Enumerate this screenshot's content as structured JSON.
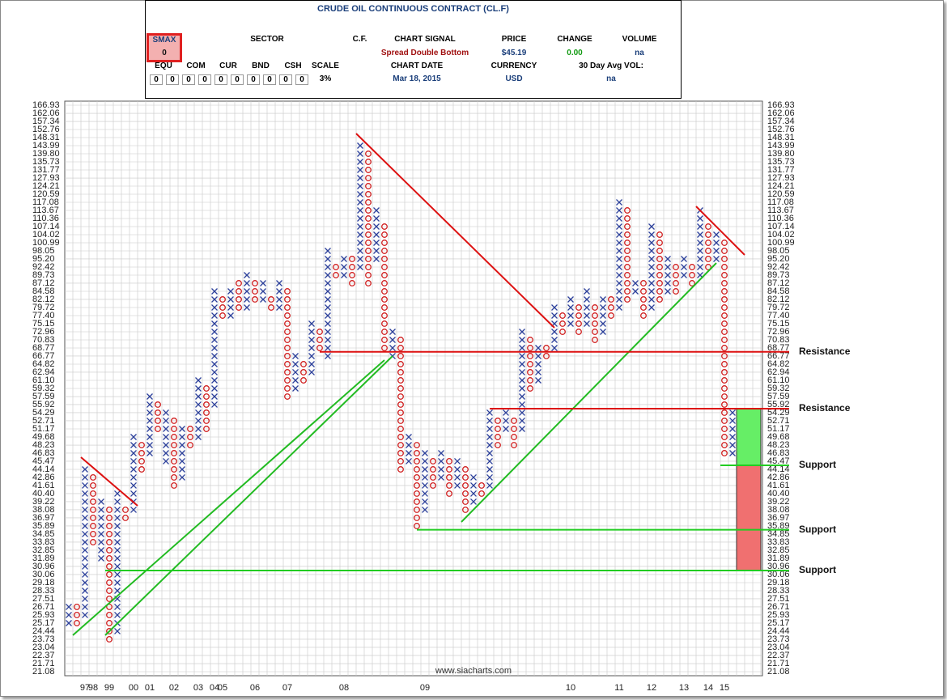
{
  "header": {
    "title": "CRUDE OIL CONTINUOUS CONTRACT (CL.F)",
    "smax_label": "SMAX",
    "smax_value": "0",
    "sector": "SECTOR",
    "cf": "C.F.",
    "signal_label": "CHART SIGNAL",
    "signal": "Spread Double Bottom",
    "price_label": "PRICE",
    "price": "$45.19",
    "change_label": "CHANGE",
    "change": "0.00",
    "volume_label": "VOLUME",
    "volume": "na",
    "assets": [
      "EQU",
      "COM",
      "CUR",
      "BND",
      "CSH"
    ],
    "asset_values": [
      "0",
      "0",
      "0",
      "0",
      "0",
      "0",
      "0",
      "0",
      "0",
      "0"
    ],
    "scale_label": "SCALE",
    "scale": "3%",
    "date_label": "CHART DATE",
    "date": "Mar 18, 2015",
    "currency_label": "CURRENCY",
    "currency": "USD",
    "avgvol_label": "30 Day Avg VOL:",
    "avgvol": "na"
  },
  "chart_data": {
    "type": "point-and-figure",
    "log": true,
    "grid": true,
    "colors": {
      "X": "#2b3f9a",
      "O": "#d02020"
    },
    "ylim": [
      21.08,
      166.93
    ],
    "yticks": [
      166.93,
      162.06,
      157.34,
      152.76,
      148.31,
      143.99,
      {
        "value": 139.8,
        "label": "139.80"
      },
      135.73,
      131.77,
      127.93,
      124.21,
      120.59,
      117.08,
      113.67,
      110.36,
      107.14,
      104.02,
      100.99,
      98.05,
      {
        "value": 95.2,
        "label": "95.20"
      },
      92.42,
      89.73,
      87.12,
      84.58,
      82.12,
      79.72,
      {
        "value": 77.4,
        "label": "77.40"
      },
      75.15,
      72.96,
      70.83,
      68.77,
      66.77,
      64.82,
      62.94,
      {
        "value": 61.1,
        "label": "61.10"
      },
      59.32,
      57.59,
      55.92,
      54.29,
      52.71,
      51.17,
      49.68,
      48.23,
      46.83,
      45.47,
      44.14,
      42.86,
      41.61,
      {
        "value": 40.4,
        "label": "40.40"
      },
      39.22,
      38.08,
      36.97,
      35.89,
      34.85,
      33.83,
      32.85,
      31.89,
      30.96,
      30.06,
      29.18,
      28.33,
      27.51,
      26.71,
      25.93,
      25.17,
      24.44,
      23.73,
      23.04,
      22.37,
      21.71,
      21.08
    ],
    "categories": [
      null,
      null,
      "97",
      "98",
      null,
      "99",
      null,
      null,
      "00",
      null,
      "01",
      null,
      null,
      "02",
      null,
      null,
      "03",
      null,
      "04",
      "05",
      null,
      null,
      null,
      "06",
      null,
      null,
      null,
      "07",
      null,
      null,
      null,
      null,
      null,
      null,
      "08",
      null,
      null,
      null,
      null,
      null,
      null,
      null,
      null,
      null,
      "09",
      null,
      null,
      null,
      null,
      null,
      null,
      null,
      null,
      null,
      null,
      null,
      null,
      null,
      null,
      null,
      null,
      null,
      "10",
      null,
      null,
      null,
      null,
      null,
      "11",
      null,
      null,
      null,
      "12",
      null,
      null,
      null,
      "13",
      null,
      null,
      "14",
      null,
      "15",
      null,
      null
    ],
    "columns": [
      {
        "type": "X",
        "low": 25.17,
        "high": 26.71
      },
      {
        "type": "O",
        "low": 25.17,
        "high": 26.71
      },
      {
        "type": "X",
        "low": 25.93,
        "high": 44.14
      },
      {
        "type": "O",
        "low": 33.83,
        "high": 42.86
      },
      {
        "type": "X",
        "low": 31.89,
        "high": 39.22
      },
      {
        "type": "O",
        "low": 23.73,
        "high": 38.08
      },
      {
        "type": "X",
        "low": 24.44,
        "high": 40.4
      },
      {
        "type": "O",
        "low": 36.97,
        "high": 38.08
      },
      {
        "type": "X",
        "low": 38.08,
        "high": 49.68
      },
      {
        "type": "O",
        "low": 44.14,
        "high": 48.23
      },
      {
        "type": "X",
        "low": 46.83,
        "high": 57.59
      },
      {
        "type": "O",
        "low": 51.17,
        "high": 55.92
      },
      {
        "type": "X",
        "low": 45.47,
        "high": 54.29
      },
      {
        "type": "O",
        "low": 41.61,
        "high": 52.71
      },
      {
        "type": "X",
        "low": 42.86,
        "high": 51.17
      },
      {
        "type": "O",
        "low": 48.23,
        "high": 51.17
      },
      {
        "type": "X",
        "low": 49.68,
        "high": 61.1
      },
      {
        "type": "O",
        "low": 51.17,
        "high": 59.32
      },
      {
        "type": "X",
        "low": 55.92,
        "high": 84.58
      },
      {
        "type": "O",
        "low": 77.4,
        "high": 82.12
      },
      {
        "type": "X",
        "low": 77.4,
        "high": 84.58
      },
      {
        "type": "O",
        "low": 79.72,
        "high": 87.12
      },
      {
        "type": "X",
        "low": 79.72,
        "high": 89.73
      },
      {
        "type": "O",
        "low": 82.12,
        "high": 87.12
      },
      {
        "type": "X",
        "low": 82.12,
        "high": 87.12
      },
      {
        "type": "O",
        "low": 79.72,
        "high": 82.12
      },
      {
        "type": "X",
        "low": 79.72,
        "high": 87.12
      },
      {
        "type": "O",
        "low": 57.59,
        "high": 84.58
      },
      {
        "type": "X",
        "low": 59.32,
        "high": 66.77
      },
      {
        "type": "O",
        "low": 61.1,
        "high": 64.82
      },
      {
        "type": "X",
        "low": 62.94,
        "high": 75.15
      },
      {
        "type": "O",
        "low": 68.77,
        "high": 72.96
      },
      {
        "type": "X",
        "low": 66.77,
        "high": 98.05
      },
      {
        "type": "O",
        "low": 89.73,
        "high": 92.42
      },
      {
        "type": "X",
        "low": 89.73,
        "high": 95.2
      },
      {
        "type": "O",
        "low": 87.12,
        "high": 95.2
      },
      {
        "type": "X",
        "low": 92.42,
        "high": 143.99
      },
      {
        "type": "O",
        "low": 87.12,
        "high": 139.8
      },
      {
        "type": "X",
        "low": 95.2,
        "high": 113.67
      },
      {
        "type": "O",
        "low": 68.77,
        "high": 107.14
      },
      {
        "type": "X",
        "low": 66.77,
        "high": 72.96
      },
      {
        "type": "O",
        "low": 44.14,
        "high": 70.83
      },
      {
        "type": "X",
        "low": 45.47,
        "high": 49.68
      },
      {
        "type": "O",
        "low": 35.89,
        "high": 48.23
      },
      {
        "type": "X",
        "low": 38.08,
        "high": 46.83
      },
      {
        "type": "O",
        "low": 41.61,
        "high": 45.47
      },
      {
        "type": "X",
        "low": 42.86,
        "high": 46.83
      },
      {
        "type": "O",
        "low": 40.4,
        "high": 45.47
      },
      {
        "type": "X",
        "low": 41.61,
        "high": 45.47
      },
      {
        "type": "O",
        "low": 38.08,
        "high": 44.14
      },
      {
        "type": "X",
        "low": 39.22,
        "high": 42.86
      },
      {
        "type": "O",
        "low": 40.4,
        "high": 41.61
      },
      {
        "type": "X",
        "low": 41.61,
        "high": 54.29
      },
      {
        "type": "O",
        "low": 48.23,
        "high": 52.71
      },
      {
        "type": "X",
        "low": 51.17,
        "high": 54.29
      },
      {
        "type": "O",
        "low": 48.23,
        "high": 52.71
      },
      {
        "type": "X",
        "low": 51.17,
        "high": 72.96
      },
      {
        "type": "O",
        "low": 59.32,
        "high": 70.83
      },
      {
        "type": "X",
        "low": 61.1,
        "high": 68.77
      },
      {
        "type": "O",
        "low": 66.77,
        "high": 68.77
      },
      {
        "type": "X",
        "low": 68.77,
        "high": 79.72
      },
      {
        "type": "O",
        "low": 72.96,
        "high": 77.4
      },
      {
        "type": "X",
        "low": 75.15,
        "high": 82.12
      },
      {
        "type": "O",
        "low": 72.96,
        "high": 79.72
      },
      {
        "type": "X",
        "low": 75.15,
        "high": 84.58
      },
      {
        "type": "O",
        "low": 70.83,
        "high": 79.72
      },
      {
        "type": "X",
        "low": 72.96,
        "high": 82.12
      },
      {
        "type": "O",
        "low": 77.4,
        "high": 82.12
      },
      {
        "type": "X",
        "low": 79.72,
        "high": 117.08
      },
      {
        "type": "O",
        "low": 82.12,
        "high": 113.67
      },
      {
        "type": "X",
        "low": 84.58,
        "high": 87.12
      },
      {
        "type": "O",
        "low": 77.4,
        "high": 87.12
      },
      {
        "type": "X",
        "low": 79.72,
        "high": 107.14
      },
      {
        "type": "O",
        "low": 82.12,
        "high": 104.02
      },
      {
        "type": "X",
        "low": 84.58,
        "high": 95.2
      },
      {
        "type": "O",
        "low": 84.58,
        "high": 92.42
      },
      {
        "type": "X",
        "low": 89.73,
        "high": 95.2
      },
      {
        "type": "O",
        "low": 87.12,
        "high": 92.42
      },
      {
        "type": "X",
        "low": 89.73,
        "high": 113.67
      },
      {
        "type": "O",
        "low": 92.42,
        "high": 107.14
      },
      {
        "type": "X",
        "low": 95.2,
        "high": 104.02
      },
      {
        "type": "O",
        "low": 46.83,
        "high": 100.99
      },
      {
        "type": "X",
        "low": 46.83,
        "high": 54.29
      },
      {
        "type": "O",
        "low": 45.47,
        "high": 52.71
      }
    ],
    "levels": [
      {
        "value": 67.8,
        "label": "Resistance"
      },
      {
        "value": 55.1,
        "label": "Resistance"
      },
      {
        "value": 44.8,
        "label": "Support"
      },
      {
        "value": 35.4,
        "label": "Support"
      },
      {
        "value": 30.5,
        "label": "Support"
      }
    ],
    "source": "www.siacharts.com"
  }
}
